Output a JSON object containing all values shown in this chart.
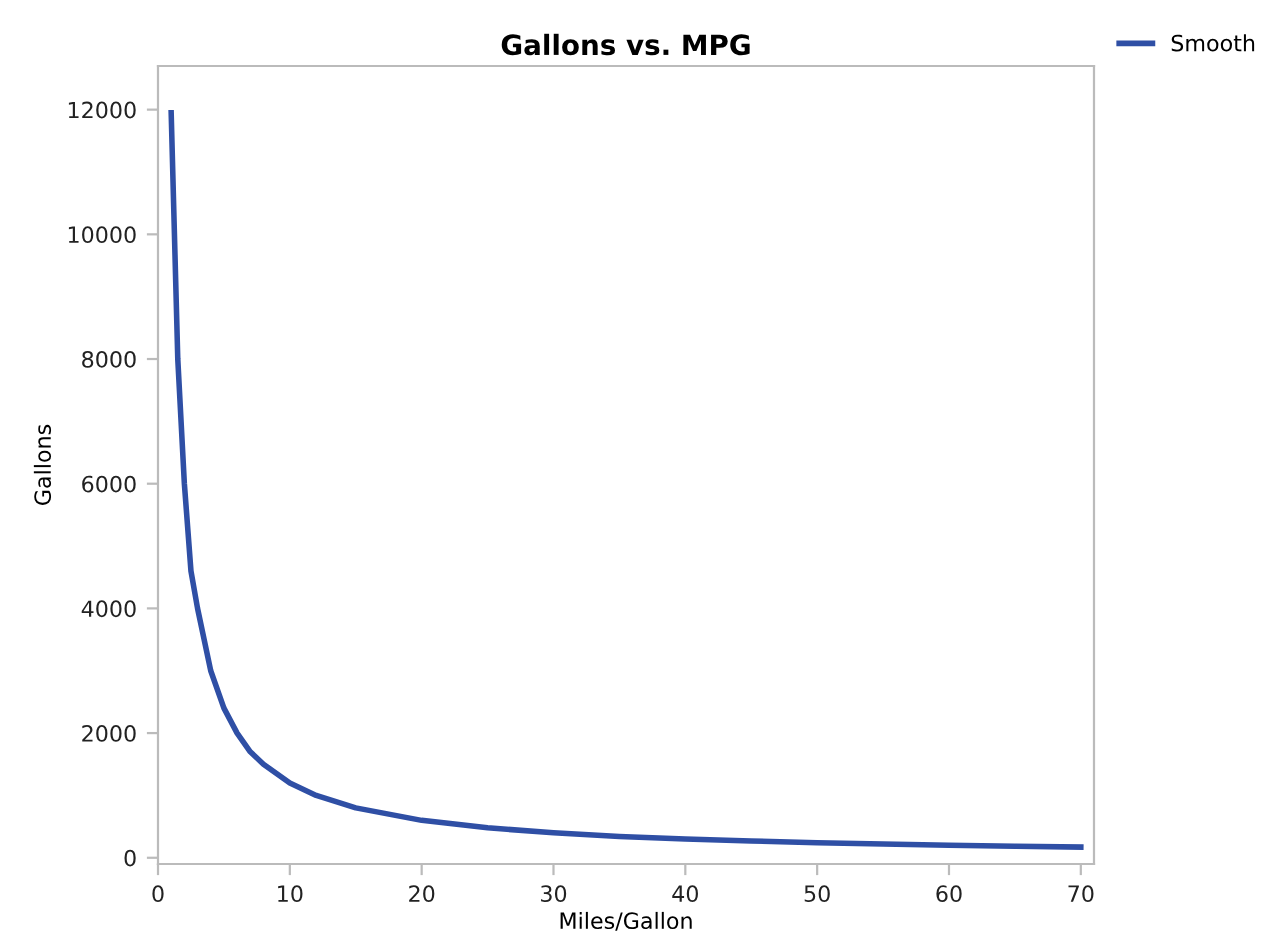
{
  "chart_data": {
    "type": "line",
    "title": "Gallons vs. MPG",
    "xlabel": "Miles/Gallon",
    "ylabel": "Gallons",
    "series": [
      {
        "name": "Smooth",
        "color": "#2f4fa5",
        "x": [
          1,
          1.5,
          2,
          2.5,
          3,
          4,
          5,
          6,
          7,
          8,
          10,
          12,
          15,
          20,
          25,
          30,
          35,
          40,
          45,
          50,
          55,
          60,
          65,
          70
        ],
        "values": [
          11950,
          8000,
          6000,
          4600,
          4000,
          3000,
          2400,
          2000,
          1700,
          1500,
          1200,
          1000,
          800,
          600,
          480,
          400,
          340,
          300,
          270,
          240,
          220,
          200,
          185,
          171
        ]
      }
    ],
    "xlim": [
      0,
      71
    ],
    "xticks": [
      0,
      10,
      20,
      30,
      40,
      50,
      60,
      70
    ],
    "ylim": [
      -100,
      12700
    ],
    "yticks": [
      0,
      2000,
      4000,
      6000,
      8000,
      10000,
      12000
    ],
    "grid": false,
    "legend": "top right",
    "marker": "none",
    "line_style": "solid"
  }
}
